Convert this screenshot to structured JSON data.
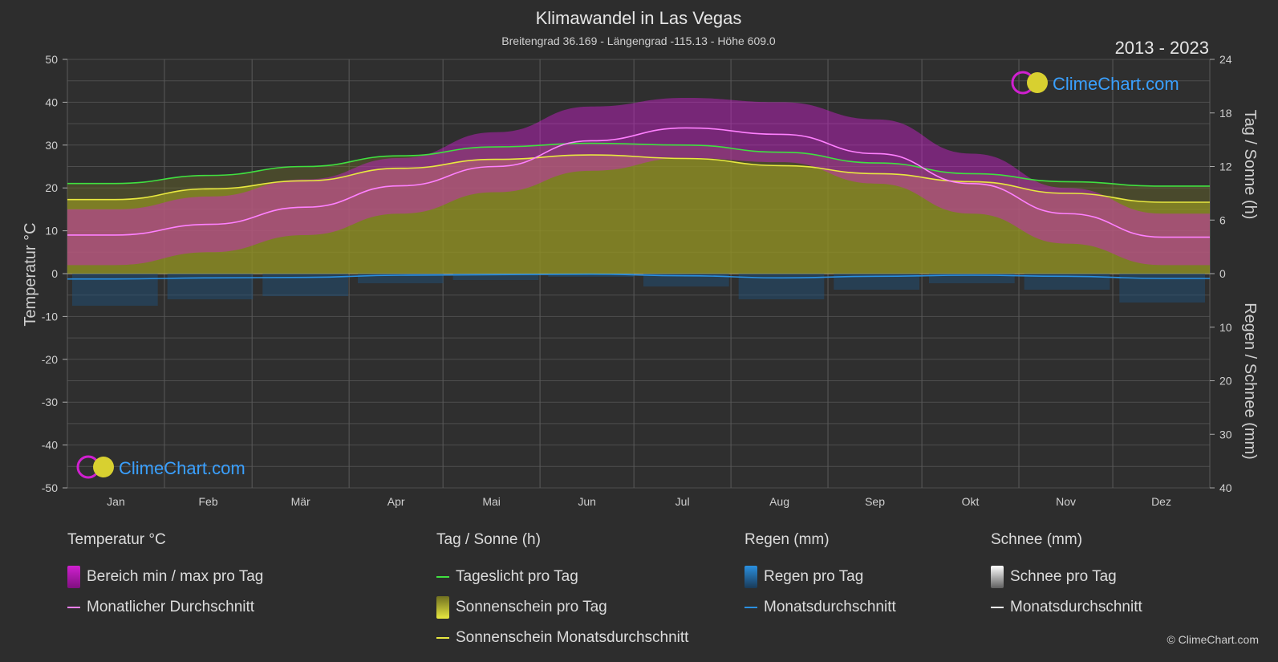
{
  "header": {
    "title": "Klimawandel in Las Vegas",
    "subtitle": "Breitengrad 36.169 - Längengrad -115.13 - Höhe 609.0",
    "period": "2013 - 2023"
  },
  "logo_text": "ClimeChart.com",
  "copyright": "© ClimeChart.com",
  "colors": {
    "temp_range": "#d020d0",
    "temp_avg": "#ff80ff",
    "daylight": "#40e040",
    "sunshine": "#a8a820",
    "sunshine_avg": "#e8e840",
    "rain": "#2a7fc8",
    "snow": "#ffffff"
  },
  "chart_data": {
    "type": "line",
    "categories": [
      "Jan",
      "Feb",
      "Mär",
      "Apr",
      "Mai",
      "Jun",
      "Jul",
      "Aug",
      "Sep",
      "Okt",
      "Nov",
      "Dez"
    ],
    "left_axis": {
      "label": "Temperatur °C",
      "ylim": [
        -50,
        50
      ],
      "ticks": [
        50,
        40,
        30,
        20,
        10,
        0,
        -10,
        -20,
        -30,
        -40,
        -50
      ]
    },
    "right_axis_top": {
      "label": "Tag / Sonne (h)",
      "ylim": [
        0,
        24
      ],
      "ticks": [
        24,
        18,
        12,
        6,
        0
      ]
    },
    "right_axis_bottom": {
      "label": "Regen / Schnee (mm)",
      "ylim": [
        0,
        40
      ],
      "ticks": [
        10,
        20,
        30,
        40
      ]
    },
    "series": [
      {
        "name": "Monatlicher Durchschnitt",
        "unit": "°C",
        "values": [
          9,
          11.5,
          15.5,
          20.5,
          25,
          31,
          34,
          32.5,
          28,
          21,
          14,
          8.5
        ]
      },
      {
        "name": "Tageslicht pro Tag",
        "unit": "h",
        "values": [
          10.1,
          11.0,
          12.0,
          13.2,
          14.2,
          14.6,
          14.4,
          13.6,
          12.4,
          11.2,
          10.3,
          9.8
        ]
      },
      {
        "name": "Sonnenschein Monatsdurchschnitt",
        "unit": "h",
        "values": [
          8.3,
          9.5,
          10.4,
          11.8,
          12.8,
          13.3,
          12.9,
          12.1,
          11.2,
          10.3,
          9.0,
          8.0
        ]
      },
      {
        "name": "Regen Monatsdurchschnitt",
        "unit": "mm",
        "values": [
          1.0,
          0.8,
          0.7,
          0.3,
          0.2,
          0.1,
          0.4,
          0.8,
          0.5,
          0.3,
          0.5,
          0.9
        ]
      },
      {
        "name": "Temperatur max",
        "unit": "°C",
        "values": [
          15,
          18,
          22,
          27,
          33,
          39,
          41,
          40,
          36,
          28,
          20,
          14
        ]
      },
      {
        "name": "Temperatur min",
        "unit": "°C",
        "values": [
          2,
          5,
          9,
          14,
          19,
          24,
          27,
          26,
          21,
          14,
          7,
          2
        ]
      }
    ]
  },
  "legend": {
    "groups": [
      {
        "title": "Temperatur °C",
        "items": [
          {
            "label": "Bereich min / max pro Tag",
            "kind": "swatch",
            "color": "#d020d0"
          },
          {
            "label": "Monatlicher Durchschnitt",
            "kind": "line",
            "color": "#ff80ff"
          }
        ]
      },
      {
        "title": "Tag / Sonne (h)",
        "items": [
          {
            "label": "Tageslicht pro Tag",
            "kind": "line",
            "color": "#40e040"
          },
          {
            "label": "Sonnenschein pro Tag",
            "kind": "swatch",
            "color": "#c8c830"
          },
          {
            "label": "Sonnenschein Monatsdurchschnitt",
            "kind": "line",
            "color": "#e8e840"
          }
        ]
      },
      {
        "title": "Regen (mm)",
        "items": [
          {
            "label": "Regen pro Tag",
            "kind": "swatch",
            "color": "#2a7fc8"
          },
          {
            "label": "Monatsdurchschnitt",
            "kind": "line",
            "color": "#2a90e0"
          }
        ]
      },
      {
        "title": "Schnee (mm)",
        "items": [
          {
            "label": "Schnee pro Tag",
            "kind": "swatch",
            "color": "#e0e0e0"
          },
          {
            "label": "Monatsdurchschnitt",
            "kind": "line",
            "color": "#ffffff"
          }
        ]
      }
    ]
  }
}
